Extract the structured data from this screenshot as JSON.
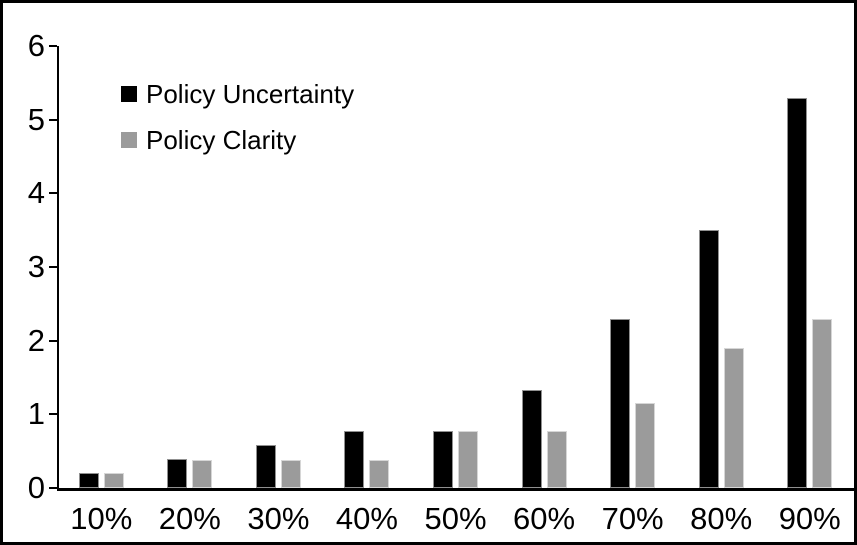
{
  "chart_data": {
    "type": "bar",
    "title": "",
    "xlabel": "",
    "ylabel": "",
    "categories": [
      "10%",
      "20%",
      "30%",
      "40%",
      "50%",
      "60%",
      "70%",
      "80%",
      "90%"
    ],
    "series": [
      {
        "name": "Policy Uncertainty",
        "color": "#000000",
        "values": [
          0.2,
          0.4,
          0.58,
          0.77,
          0.77,
          1.33,
          2.3,
          3.5,
          5.3
        ]
      },
      {
        "name": "Policy Clarity",
        "color": "#9b9b9b",
        "values": [
          0.2,
          0.38,
          0.38,
          0.38,
          0.77,
          0.77,
          1.15,
          1.9,
          2.3
        ]
      }
    ],
    "ylim": [
      0,
      6
    ],
    "yticks": [
      "0",
      "1",
      "2",
      "3",
      "4",
      "5",
      "6"
    ],
    "grid": false,
    "legend_position": "top-left",
    "axis_color": "#000000",
    "background_color": "#ffffff"
  }
}
